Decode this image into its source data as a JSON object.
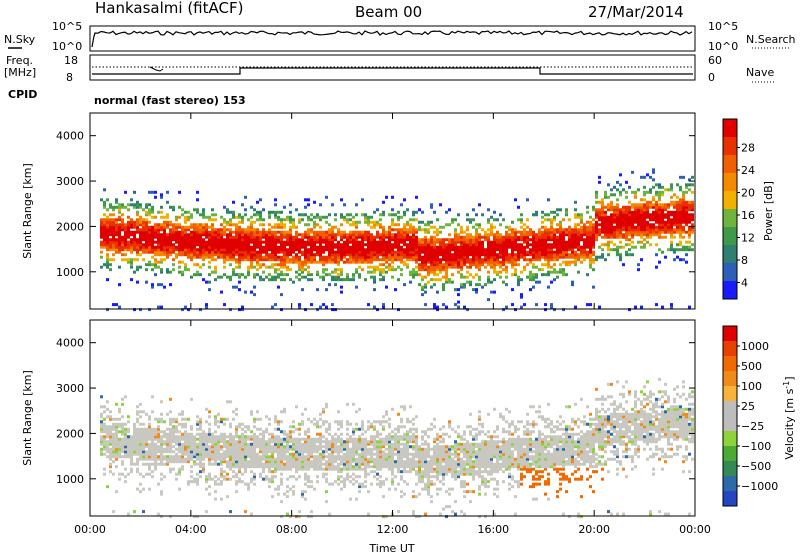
{
  "header": {
    "station": "Hankasalmi (fitACF)",
    "beam": "Beam 00",
    "date": "27/Mar/2014"
  },
  "nsky_panel": {
    "left_label": "N.Sky",
    "right_label": "N.Search",
    "y_ticks_left": [
      "10^5",
      "10^0"
    ],
    "y_ticks_right": [
      "10^5",
      "10^0"
    ]
  },
  "freq_panel": {
    "left_label_1": "Freq.",
    "left_label_2": "[MHz]",
    "right_label": "Nave",
    "y_ticks_left": [
      "18",
      "8"
    ],
    "y_ticks_right": [
      "60",
      "0"
    ]
  },
  "cpid": {
    "label": "CPID",
    "text": "normal (fast stereo) 153"
  },
  "chart_data": [
    {
      "type": "heatmap",
      "name": "power",
      "ylabel": "Slant Range [km]",
      "xlabel": "",
      "ylim": [
        180,
        4500
      ],
      "y_ticks": [
        1000,
        2000,
        3000,
        4000
      ],
      "colorbar": {
        "label": "Power [dB]",
        "ticks": [
          "4",
          "8",
          "12",
          "16",
          "20",
          "24",
          "28"
        ],
        "colors": [
          "#1a1aff",
          "#2e5fb8",
          "#2f7f73",
          "#3e9a4a",
          "#6fb43c",
          "#f2b000",
          "#f58a00",
          "#f06000",
          "#e83000",
          "#e00000"
        ]
      }
    },
    {
      "type": "heatmap",
      "name": "velocity",
      "ylabel": "Slant Range [km]",
      "xlabel": "Time UT",
      "ylim": [
        180,
        4500
      ],
      "y_ticks": [
        1000,
        2000,
        3000,
        4000
      ],
      "x_ticks": [
        "00:00",
        "04:00",
        "08:00",
        "12:00",
        "16:00",
        "20:00",
        "00:00"
      ],
      "colorbar": {
        "label": "Velocity [m s",
        "label_sup": "-1",
        "label_end": "]",
        "ticks": [
          "1000",
          "500",
          "100",
          "25",
          "−25",
          "−100",
          "−500",
          "−1000"
        ],
        "colors": [
          "#2346c4",
          "#2e6aa8",
          "#338a57",
          "#4caa35",
          "#8ed23c",
          "#bdbdbd",
          "#bdbdbd",
          "#f7b33a",
          "#f08a1a",
          "#f06a00",
          "#e84000",
          "#e00000"
        ]
      }
    }
  ]
}
